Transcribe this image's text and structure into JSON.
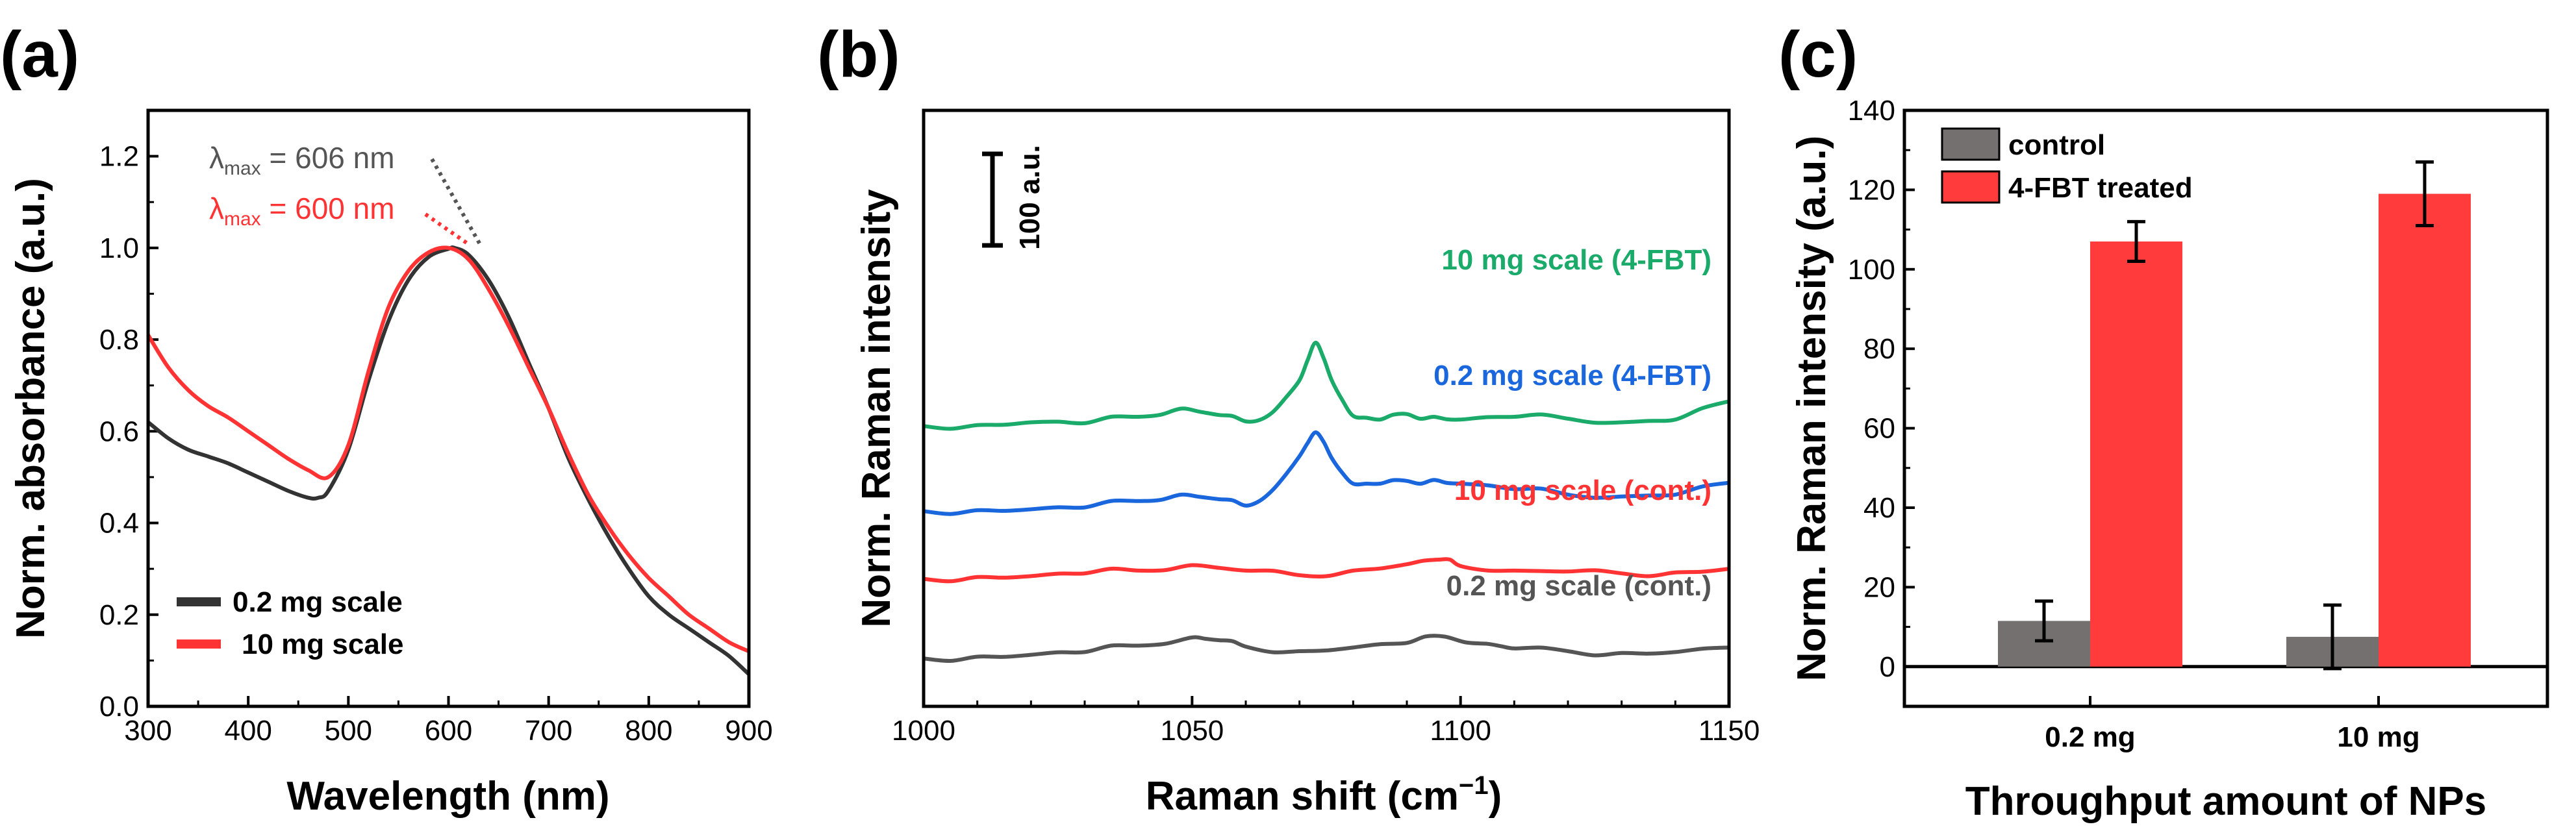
{
  "chart_data": [
    {
      "panel": "(a)",
      "type": "line",
      "xlabel": "Wavelength (nm)",
      "ylabel": "Norm. absorbance (a.u.)",
      "xlim": [
        300,
        900
      ],
      "ylim": [
        0.0,
        1.3
      ],
      "xticks": [
        "300",
        "400",
        "500",
        "600",
        "700",
        "800",
        "900"
      ],
      "yticks": [
        "0.0",
        "0.2",
        "0.4",
        "0.6",
        "0.8",
        "1.0",
        "1.2"
      ],
      "annotations": [
        {
          "symbol": "λ",
          "sub": "max",
          "text": " = 606 nm",
          "color": "#555555",
          "x": 606,
          "y": 1.0
        },
        {
          "symbol": "λ",
          "sub": "max",
          "text": " = 600 nm",
          "color": "#ff3333",
          "x": 600,
          "y": 1.0
        }
      ],
      "series": [
        {
          "name": "0.2 mg scale",
          "color": "#333333",
          "x": [
            300,
            320,
            340,
            360,
            380,
            400,
            420,
            440,
            460,
            470,
            480,
            500,
            520,
            540,
            560,
            580,
            600,
            606,
            620,
            640,
            660,
            680,
            700,
            720,
            740,
            760,
            780,
            800,
            820,
            840,
            860,
            880,
            900
          ],
          "y": [
            0.62,
            0.585,
            0.56,
            0.545,
            0.53,
            0.51,
            0.49,
            0.47,
            0.455,
            0.455,
            0.47,
            0.56,
            0.71,
            0.84,
            0.93,
            0.98,
            0.998,
            1.0,
            0.985,
            0.93,
            0.85,
            0.75,
            0.65,
            0.54,
            0.45,
            0.37,
            0.3,
            0.24,
            0.2,
            0.17,
            0.14,
            0.11,
            0.07
          ]
        },
        {
          "name": "10 mg scale",
          "color": "#ff3333",
          "x": [
            300,
            320,
            340,
            360,
            380,
            400,
            420,
            440,
            460,
            480,
            500,
            520,
            540,
            560,
            580,
            600,
            620,
            640,
            660,
            680,
            700,
            720,
            740,
            760,
            780,
            800,
            820,
            840,
            860,
            880,
            900
          ],
          "y": [
            0.81,
            0.74,
            0.69,
            0.655,
            0.63,
            0.6,
            0.57,
            0.54,
            0.515,
            0.5,
            0.57,
            0.73,
            0.87,
            0.95,
            0.99,
            1.0,
            0.975,
            0.91,
            0.83,
            0.74,
            0.65,
            0.55,
            0.46,
            0.39,
            0.33,
            0.28,
            0.24,
            0.2,
            0.17,
            0.14,
            0.12
          ]
        }
      ]
    },
    {
      "panel": "(b)",
      "type": "line",
      "xlabel_main": "Raman shift (cm",
      "xlabel_sup": "−1",
      "xlabel_end": ")",
      "ylabel": "Norm. Raman intensity",
      "xlim": [
        1000,
        1150
      ],
      "xticks": [
        "1000",
        "1050",
        "1100",
        "1150"
      ],
      "scale_bar": "100 a.u.",
      "series": [
        {
          "name": "10 mg scale (4-FBT)",
          "color": "#1aaa6a",
          "x": [
            1000,
            1010,
            1020,
            1030,
            1040,
            1048,
            1055,
            1060,
            1065,
            1070,
            1073,
            1076,
            1080,
            1085,
            1090,
            1095,
            1100,
            1110,
            1120,
            1130,
            1140,
            1150
          ],
          "y": [
            285,
            286,
            289,
            288,
            295,
            304,
            297,
            290,
            300,
            335,
            376,
            335,
            296,
            292,
            298,
            295,
            292,
            295,
            293,
            289,
            292,
            312
          ]
        },
        {
          "name": "0.2 mg scale (4-FBT)",
          "color": "#1a66dd",
          "x": [
            1000,
            1010,
            1020,
            1030,
            1040,
            1048,
            1055,
            1060,
            1065,
            1070,
            1073,
            1076,
            1080,
            1085,
            1090,
            1095,
            1100,
            1110,
            1120,
            1130,
            1140,
            1150
          ],
          "y": [
            192,
            193,
            194,
            196,
            203,
            210,
            205,
            198,
            215,
            252,
            278,
            250,
            222,
            222,
            225,
            226,
            222,
            216,
            210,
            208,
            210,
            223
          ]
        },
        {
          "name": "10 mg scale (cont.)",
          "color": "#ff3333",
          "x": [
            1000,
            1010,
            1020,
            1030,
            1040,
            1050,
            1060,
            1070,
            1080,
            1090,
            1096,
            1100,
            1110,
            1120,
            1130,
            1140,
            1150
          ],
          "y": [
            118,
            120,
            121,
            124,
            127,
            133,
            127,
            122,
            127,
            134,
            139,
            132,
            127,
            126,
            124,
            125,
            129
          ]
        },
        {
          "name": "0.2 mg scale (cont.)",
          "color": "#555555",
          "x": [
            1000,
            1010,
            1020,
            1030,
            1040,
            1050,
            1055,
            1060,
            1070,
            1080,
            1090,
            1097,
            1105,
            1110,
            1120,
            1130,
            1140,
            1150
          ],
          "y": [
            31,
            33,
            35,
            38,
            45,
            54,
            51,
            44,
            39,
            43,
            48,
            55,
            47,
            42,
            39,
            37,
            38,
            43
          ]
        }
      ]
    },
    {
      "panel": "(c)",
      "type": "bar",
      "xlabel": "Throughput amount of NPs",
      "ylabel": "Norm. Raman intensity (a.u.)",
      "categories": [
        "0.2 mg",
        "10 mg"
      ],
      "ylim": [
        -10,
        140
      ],
      "yticks": [
        "0",
        "20",
        "40",
        "60",
        "80",
        "100",
        "120",
        "140"
      ],
      "series": [
        {
          "name": "control",
          "color": "#757070",
          "values": [
            11.5,
            7.5
          ],
          "errors": [
            5,
            8
          ]
        },
        {
          "name": "4-FBT treated",
          "color": "#ff3b3b",
          "values": [
            107,
            119
          ],
          "errors": [
            5,
            8
          ]
        }
      ]
    }
  ]
}
